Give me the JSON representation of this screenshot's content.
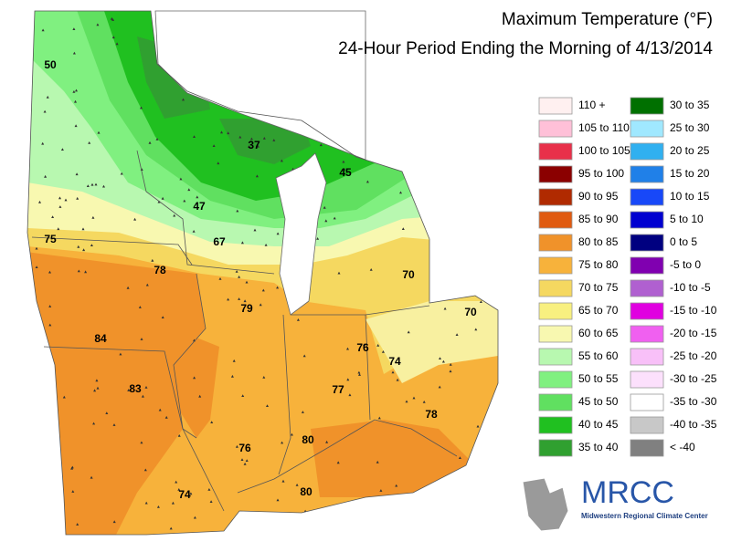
{
  "title": "Maximum Temperature (°F)",
  "subtitle": "24-Hour Period Ending the Morning of 4/13/2014",
  "legend": [
    {
      "label": "110 +",
      "color": "#fff0f0"
    },
    {
      "label": "105 to 110",
      "color": "#ffc0d8"
    },
    {
      "label": "100 to 105",
      "color": "#e8304a"
    },
    {
      "label": "95 to 100",
      "color": "#8b0000"
    },
    {
      "label": "90 to 95",
      "color": "#b02a00"
    },
    {
      "label": "85 to 90",
      "color": "#e05a10"
    },
    {
      "label": "80 to 85",
      "color": "#f0922a"
    },
    {
      "label": "75 to 80",
      "color": "#f7b23b"
    },
    {
      "label": "70 to 75",
      "color": "#f5d860"
    },
    {
      "label": "65 to 70",
      "color": "#f8f080"
    },
    {
      "label": "60 to 65",
      "color": "#f8f8b0"
    },
    {
      "label": "55 to 60",
      "color": "#b8f8b0"
    },
    {
      "label": "50 to 55",
      "color": "#80f080"
    },
    {
      "label": "45 to 50",
      "color": "#60e060"
    },
    {
      "label": "40 to 45",
      "color": "#20c020"
    },
    {
      "label": "35 to 40",
      "color": "#30a030"
    },
    {
      "label": "30 to 35",
      "color": "#007000"
    },
    {
      "label": "25 to 30",
      "color": "#a0e8ff"
    },
    {
      "label": "20 to 25",
      "color": "#30b0f0"
    },
    {
      "label": "15 to 20",
      "color": "#2080e8"
    },
    {
      "label": "10 to 15",
      "color": "#1848f8"
    },
    {
      "label": "5 to 10",
      "color": "#0000d0"
    },
    {
      "label": "0 to 5",
      "color": "#000080"
    },
    {
      "label": "-5 to 0",
      "color": "#8000b0"
    },
    {
      "label": "-10 to -5",
      "color": "#b060d0"
    },
    {
      "label": "-15 to -10",
      "color": "#e000e0"
    },
    {
      "label": "-20 to -15",
      "color": "#f060f0"
    },
    {
      "label": "-25 to -20",
      "color": "#f8c0f8"
    },
    {
      "label": "-30 to -25",
      "color": "#fce0fc"
    },
    {
      "label": "-35 to -30",
      "color": "#ffffff"
    },
    {
      "label": "-40 to -35",
      "color": "#c8c8c8"
    },
    {
      "label": "< -40",
      "color": "#808080"
    }
  ],
  "map_labels": [
    50,
    37,
    45,
    47,
    75,
    67,
    78,
    79,
    70,
    70,
    84,
    76,
    74,
    83,
    77,
    78,
    80,
    76,
    80,
    74
  ],
  "logo": {
    "name": "MRCC",
    "subtitle": "Midwestern Regional Climate Center"
  }
}
